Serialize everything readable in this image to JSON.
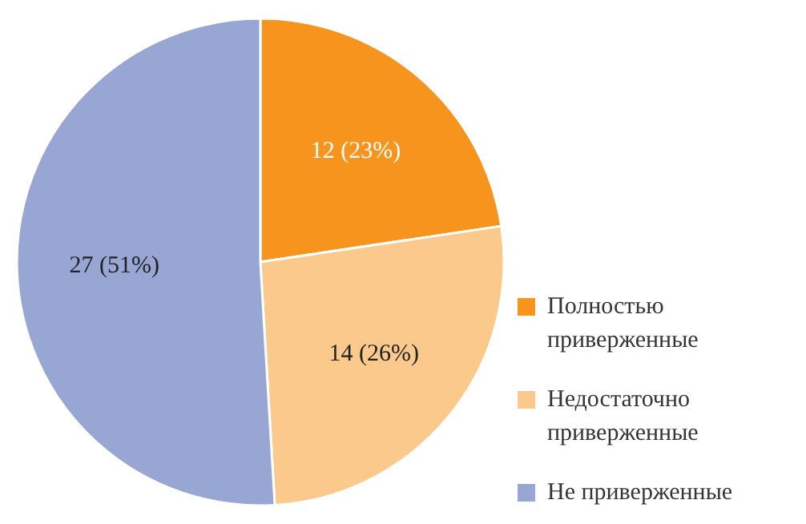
{
  "chart_data": {
    "type": "pie",
    "categories": [
      "Полностью приверженные",
      "Недостаточно приверженные",
      "Не приверженные"
    ],
    "values": [
      12,
      14,
      27
    ],
    "colors": [
      "#f7941d",
      "#fac98b",
      "#98a6d4"
    ],
    "value_labels": [
      "12 (23%)",
      "14 (26%)",
      "27 (51%)"
    ],
    "legend": "right"
  }
}
